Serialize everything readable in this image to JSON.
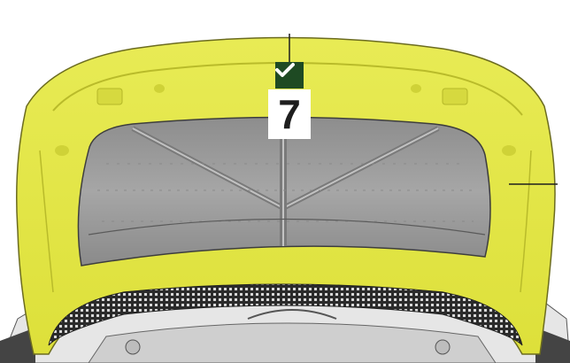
{
  "step": {
    "number": "7",
    "status_icon": "checkmark-icon",
    "completed": true
  },
  "colors": {
    "hood": "#e4e845",
    "hood_edge": "#c9cc2c",
    "insulation_pad": "#9a9a9a",
    "mesh_seal": "#3a3a3a",
    "badge": "#1e4a23",
    "callout_line": "#1e1e1e"
  }
}
